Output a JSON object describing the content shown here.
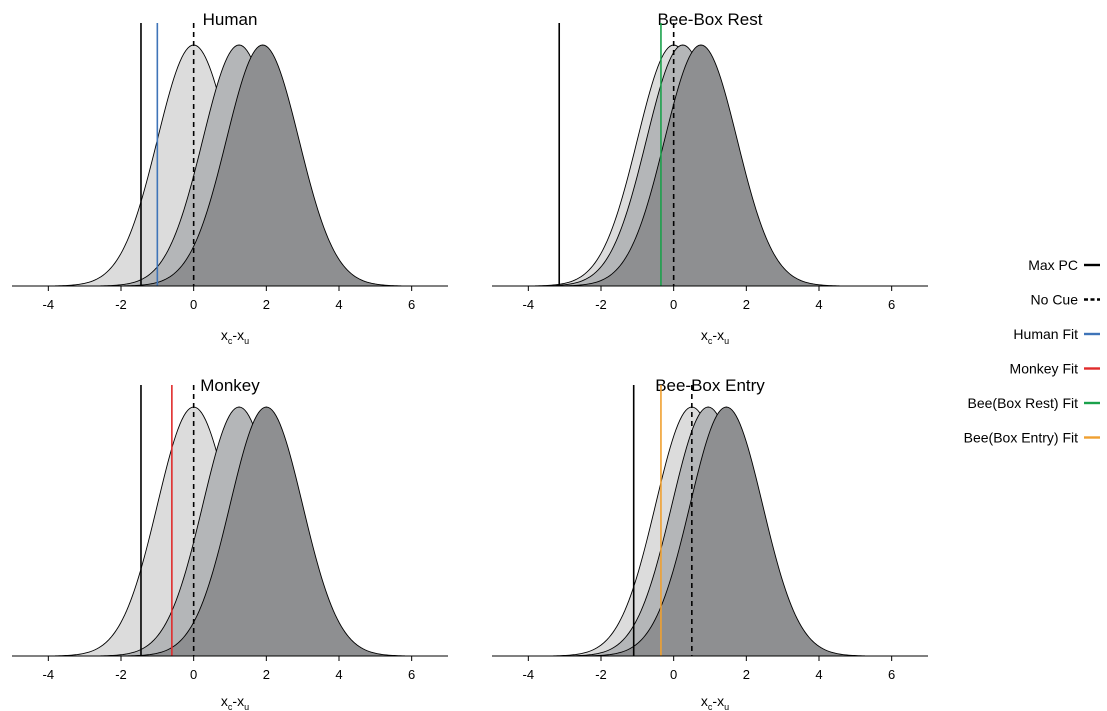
{
  "chart_data": [
    {
      "type": "area",
      "title": "Human",
      "xlabel": {
        "base": "x",
        "sub1": "c",
        "sep": "-",
        "sub2": "u"
      },
      "xlim": [
        -5,
        7
      ],
      "xticks": [
        -4,
        -2,
        0,
        2,
        4,
        6
      ],
      "series": [
        {
          "mean": 0.0,
          "sd": 1.0,
          "color": "#dcdcdc"
        },
        {
          "mean": 1.25,
          "sd": 1.0,
          "color": "#b4b6b8"
        },
        {
          "mean": 1.9,
          "sd": 1.0,
          "color": "#8e8f91"
        }
      ],
      "vlines": [
        {
          "x": -1.45,
          "style": "max-pc"
        },
        {
          "x": 0.0,
          "style": "no-cue"
        },
        {
          "x": -1.0,
          "style": "fit",
          "color": "#3f74b8"
        }
      ]
    },
    {
      "type": "area",
      "title": "Bee-Box Rest",
      "xlabel": {
        "base": "x",
        "sub1": "c",
        "sep": "-",
        "sub2": "u"
      },
      "xlim": [
        -5,
        7
      ],
      "xticks": [
        -4,
        -2,
        0,
        2,
        4,
        6
      ],
      "series": [
        {
          "mean": 0.0,
          "sd": 1.0,
          "color": "#dcdcdc"
        },
        {
          "mean": 0.25,
          "sd": 1.0,
          "color": "#b4b6b8"
        },
        {
          "mean": 0.75,
          "sd": 1.0,
          "color": "#8e8f91"
        }
      ],
      "vlines": [
        {
          "x": -3.15,
          "style": "max-pc"
        },
        {
          "x": 0.0,
          "style": "no-cue"
        },
        {
          "x": -0.35,
          "style": "fit",
          "color": "#1aa14b"
        }
      ]
    },
    {
      "type": "area",
      "title": "Monkey",
      "xlabel": {
        "base": "x",
        "sub1": "c",
        "sep": "-",
        "sub2": "u"
      },
      "xlim": [
        -5,
        7
      ],
      "xticks": [
        -4,
        -2,
        0,
        2,
        4,
        6
      ],
      "series": [
        {
          "mean": 0.0,
          "sd": 1.0,
          "color": "#dcdcdc"
        },
        {
          "mean": 1.25,
          "sd": 1.0,
          "color": "#b4b6b8"
        },
        {
          "mean": 2.0,
          "sd": 1.0,
          "color": "#8e8f91"
        }
      ],
      "vlines": [
        {
          "x": -1.45,
          "style": "max-pc"
        },
        {
          "x": 0.0,
          "style": "no-cue"
        },
        {
          "x": -0.6,
          "style": "fit",
          "color": "#e02b2b"
        }
      ]
    },
    {
      "type": "area",
      "title": "Bee-Box Entry",
      "xlabel": {
        "base": "x",
        "sub1": "c",
        "sep": "-",
        "sub2": "u"
      },
      "xlim": [
        -5,
        7
      ],
      "xticks": [
        -4,
        -2,
        0,
        2,
        4,
        6
      ],
      "series": [
        {
          "mean": 0.5,
          "sd": 1.0,
          "color": "#dcdcdc"
        },
        {
          "mean": 0.95,
          "sd": 1.0,
          "color": "#b4b6b8"
        },
        {
          "mean": 1.45,
          "sd": 1.0,
          "color": "#8e8f91"
        }
      ],
      "vlines": [
        {
          "x": -1.1,
          "style": "max-pc"
        },
        {
          "x": 0.5,
          "style": "no-cue"
        },
        {
          "x": -0.35,
          "style": "fit",
          "color": "#f0a030"
        }
      ]
    }
  ],
  "legend": {
    "placement": "right",
    "items": [
      {
        "label": "Max PC",
        "style": "solid",
        "color": "#000000"
      },
      {
        "label": "No Cue",
        "style": "dashed",
        "color": "#000000"
      },
      {
        "label": "Human Fit",
        "style": "solid",
        "color": "#3f74b8"
      },
      {
        "label": "Monkey Fit",
        "style": "solid",
        "color": "#e02b2b"
      },
      {
        "label": "Bee(Box Rest) Fit",
        "style": "solid",
        "color": "#1aa14b"
      },
      {
        "label": "Bee(Box Entry) Fit",
        "style": "solid",
        "color": "#f0a030"
      }
    ]
  }
}
